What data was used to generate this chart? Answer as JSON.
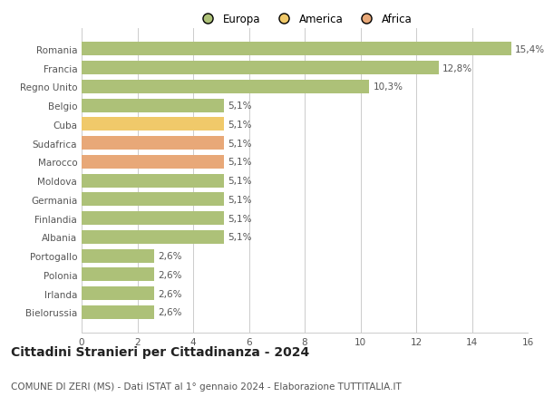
{
  "categories": [
    "Romania",
    "Francia",
    "Regno Unito",
    "Belgio",
    "Cuba",
    "Sudafrica",
    "Marocco",
    "Moldova",
    "Germania",
    "Finlandia",
    "Albania",
    "Portogallo",
    "Polonia",
    "Irlanda",
    "Bielorussia"
  ],
  "values": [
    15.4,
    12.8,
    10.3,
    5.1,
    5.1,
    5.1,
    5.1,
    5.1,
    5.1,
    5.1,
    5.1,
    2.6,
    2.6,
    2.6,
    2.6
  ],
  "labels": [
    "15,4%",
    "12,8%",
    "10,3%",
    "5,1%",
    "5,1%",
    "5,1%",
    "5,1%",
    "5,1%",
    "5,1%",
    "5,1%",
    "5,1%",
    "2,6%",
    "2,6%",
    "2,6%",
    "2,6%"
  ],
  "colors": [
    "#adc178",
    "#adc178",
    "#adc178",
    "#adc178",
    "#f0c96a",
    "#e8a878",
    "#e8a878",
    "#adc178",
    "#adc178",
    "#adc178",
    "#adc178",
    "#adc178",
    "#adc178",
    "#adc178",
    "#adc178"
  ],
  "legend_labels": [
    "Europa",
    "America",
    "Africa"
  ],
  "legend_colors": [
    "#adc178",
    "#f0c96a",
    "#e8a878"
  ],
  "title": "Cittadini Stranieri per Cittadinanza - 2024",
  "subtitle": "COMUNE DI ZERI (MS) - Dati ISTAT al 1° gennaio 2024 - Elaborazione TUTTITALIA.IT",
  "xlim": [
    0,
    16
  ],
  "xticks": [
    0,
    2,
    4,
    6,
    8,
    10,
    12,
    14,
    16
  ],
  "background_color": "#ffffff",
  "grid_color": "#cccccc",
  "bar_height": 0.72,
  "title_fontsize": 10,
  "subtitle_fontsize": 7.5,
  "label_fontsize": 7.5,
  "tick_fontsize": 7.5,
  "legend_fontsize": 8.5,
  "text_color": "#555555",
  "title_color": "#222222"
}
